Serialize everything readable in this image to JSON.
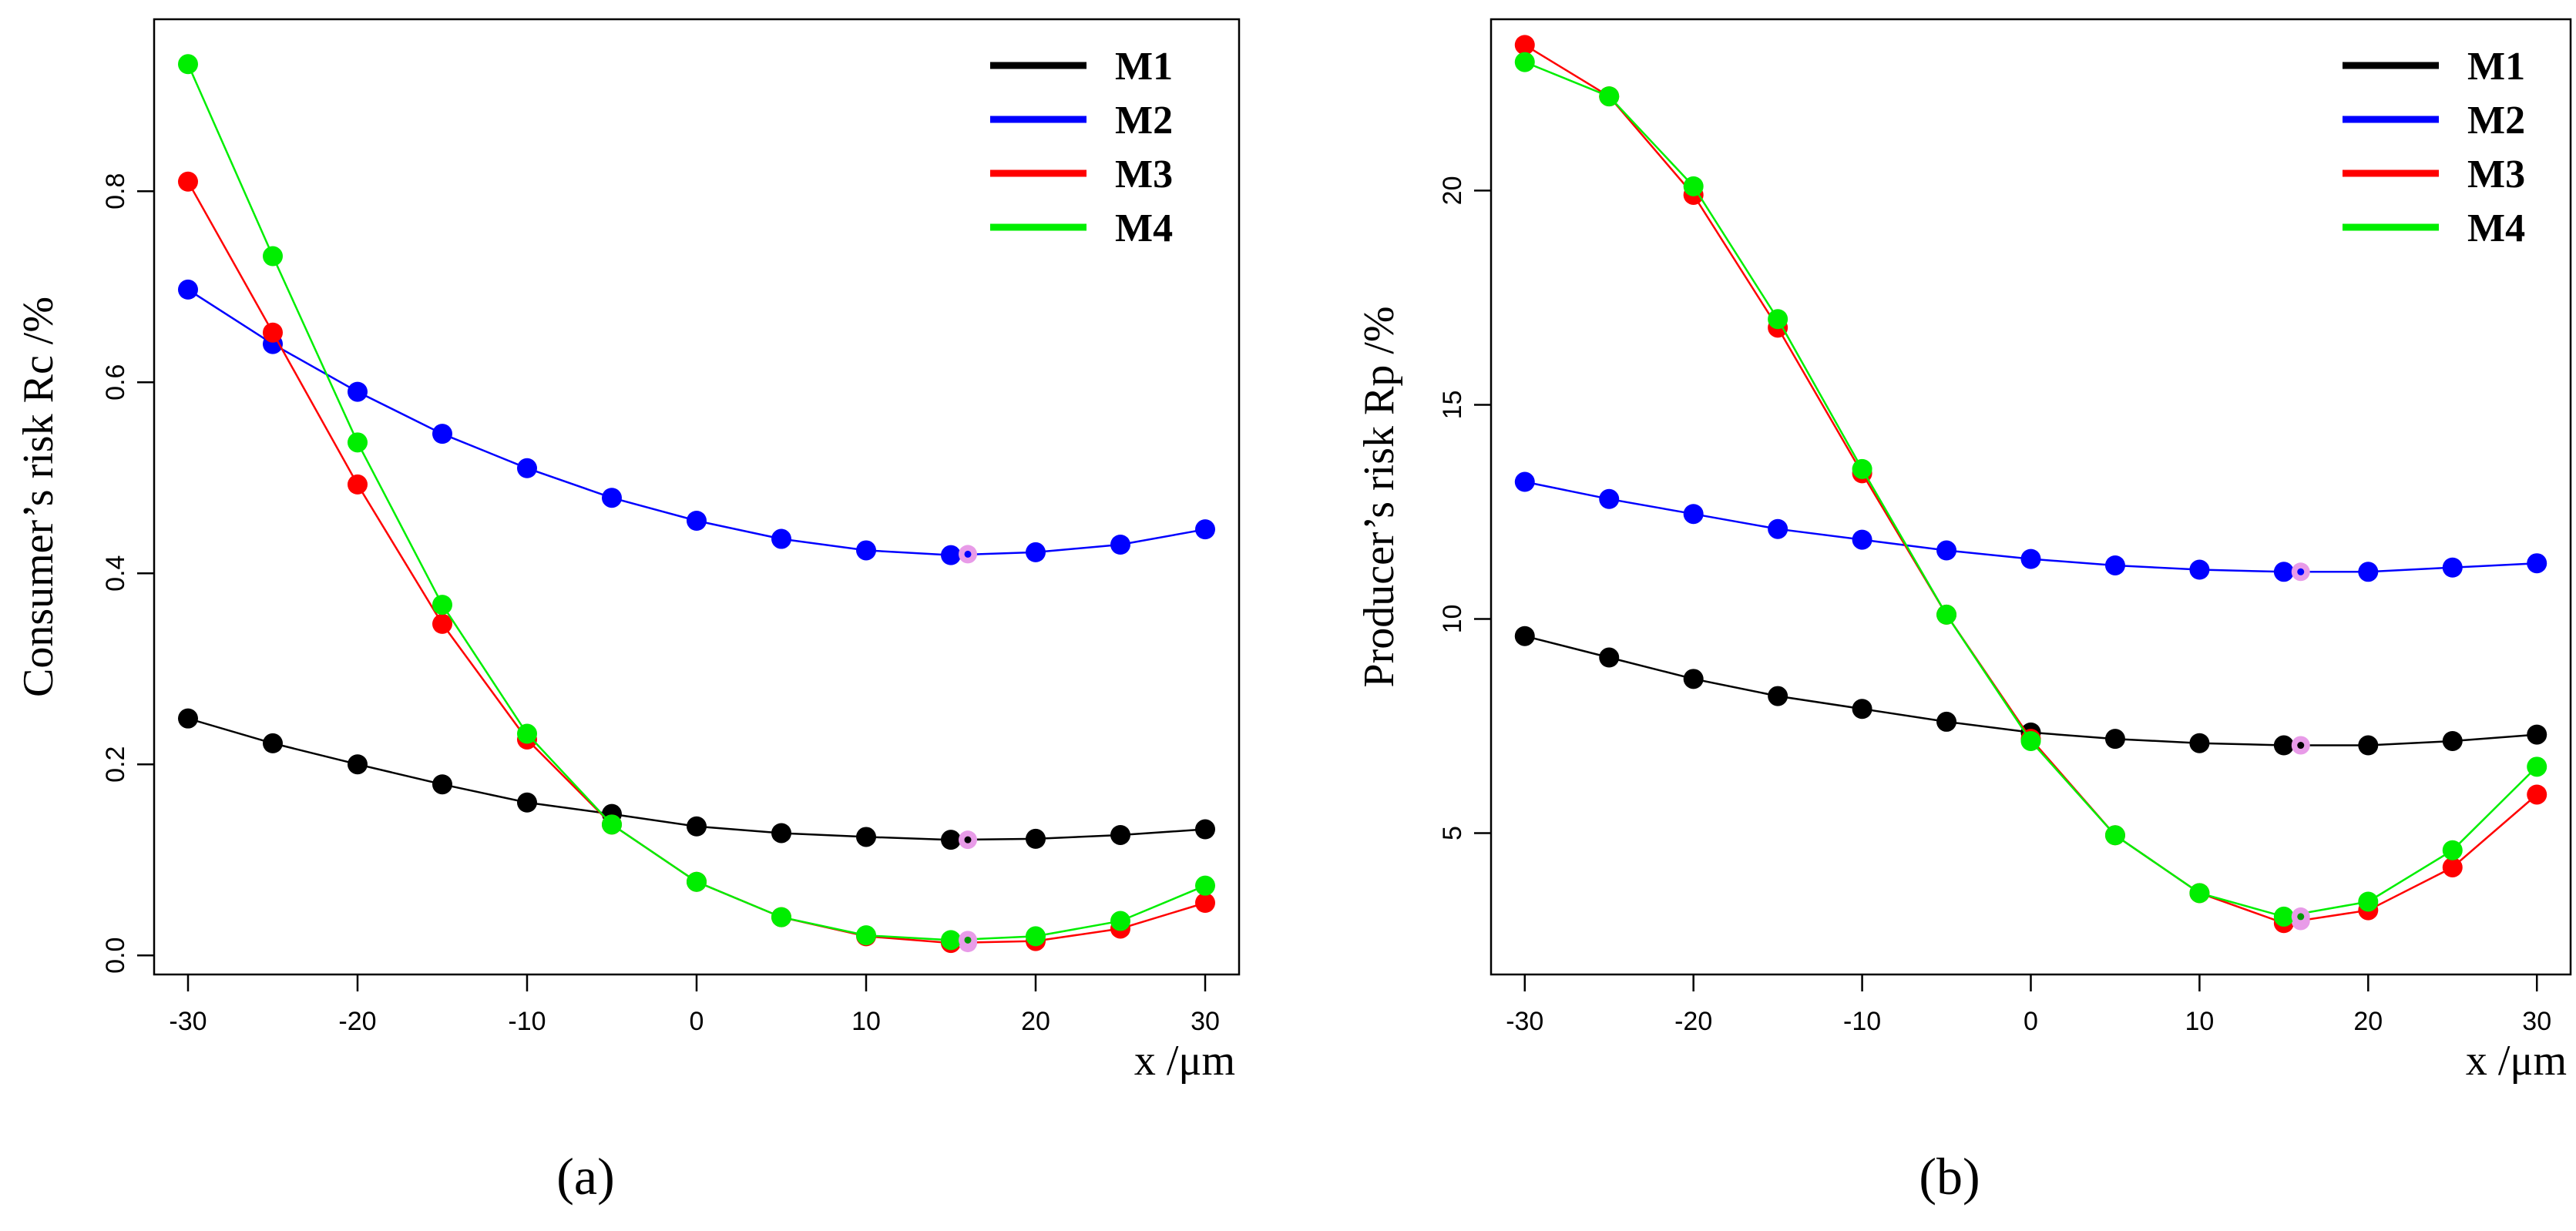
{
  "chart_data": [
    {
      "type": "line",
      "panel_label": "(a)",
      "xlabel": "x /μm",
      "ylabel": "Consumer’s risk Rc /%",
      "xlim": [
        -32,
        32
      ],
      "ylim": [
        -0.02,
        0.98
      ],
      "x_ticks": [
        -30,
        -20,
        -10,
        0,
        10,
        20,
        30
      ],
      "y_ticks": [
        0.0,
        0.2,
        0.4,
        0.6,
        0.8
      ],
      "y_tick_labels": [
        "0.0",
        "0.2",
        "0.4",
        "0.6",
        "0.8"
      ],
      "x": [
        -30,
        -25,
        -20,
        -15,
        -10,
        -5,
        0,
        5,
        10,
        15,
        20,
        25,
        30
      ],
      "legend_position": "top-right",
      "grid": false,
      "series": [
        {
          "name": "M1",
          "color": "#000000",
          "values": [
            0.248,
            0.222,
            0.2,
            0.179,
            0.16,
            0.148,
            0.135,
            0.128,
            0.124,
            0.121,
            0.122,
            0.126,
            0.132
          ],
          "optimum": {
            "x": 16,
            "y": 0.121
          }
        },
        {
          "name": "M2",
          "color": "#0000ff",
          "values": [
            0.697,
            0.64,
            0.59,
            0.546,
            0.51,
            0.479,
            0.455,
            0.436,
            0.424,
            0.419,
            0.422,
            0.43,
            0.446
          ],
          "optimum": {
            "x": 16,
            "y": 0.42
          }
        },
        {
          "name": "M3",
          "color": "#ff0000",
          "values": [
            0.81,
            0.652,
            0.493,
            0.347,
            0.226,
            0.137,
            0.077,
            0.04,
            0.02,
            0.013,
            0.015,
            0.028,
            0.055
          ],
          "optimum": {
            "x": 16,
            "y": 0.013
          }
        },
        {
          "name": "M4",
          "color": "#00ee00",
          "values": [
            0.933,
            0.732,
            0.537,
            0.367,
            0.232,
            0.137,
            0.077,
            0.04,
            0.021,
            0.016,
            0.02,
            0.036,
            0.073
          ],
          "optimum": {
            "x": 16,
            "y": 0.016
          }
        }
      ]
    },
    {
      "type": "line",
      "panel_label": "(b)",
      "xlabel": "x /μm",
      "ylabel": "Producer’s risk Rp /%",
      "xlim": [
        -32,
        32
      ],
      "ylim": [
        1.7,
        24.0
      ],
      "x_ticks": [
        -30,
        -20,
        -10,
        0,
        10,
        20,
        30
      ],
      "y_ticks": [
        5,
        10,
        15,
        20
      ],
      "y_tick_labels": [
        "5",
        "10",
        "15",
        "20"
      ],
      "x": [
        -30,
        -25,
        -20,
        -15,
        -10,
        -5,
        0,
        5,
        10,
        15,
        20,
        25,
        30
      ],
      "legend_position": "top-right",
      "grid": false,
      "series": [
        {
          "name": "M1",
          "color": "#000000",
          "values": [
            9.6,
            9.1,
            8.6,
            8.2,
            7.9,
            7.6,
            7.35,
            7.2,
            7.1,
            7.05,
            7.05,
            7.15,
            7.3
          ],
          "optimum": {
            "x": 16,
            "y": 7.05
          }
        },
        {
          "name": "M2",
          "color": "#0000ff",
          "values": [
            13.2,
            12.8,
            12.45,
            12.1,
            11.85,
            11.6,
            11.4,
            11.25,
            11.15,
            11.1,
            11.1,
            11.2,
            11.3
          ],
          "optimum": {
            "x": 16,
            "y": 11.1
          }
        },
        {
          "name": "M3",
          "color": "#ff0000",
          "values": [
            23.4,
            22.2,
            19.9,
            16.8,
            13.4,
            10.1,
            7.2,
            4.95,
            3.6,
            2.9,
            3.2,
            4.2,
            5.9
          ],
          "optimum": {
            "x": 16,
            "y": 2.95
          }
        },
        {
          "name": "M4",
          "color": "#00ee00",
          "values": [
            23.0,
            22.2,
            20.1,
            17.0,
            13.5,
            10.1,
            7.15,
            4.95,
            3.6,
            3.05,
            3.4,
            4.6,
            6.55
          ],
          "optimum": {
            "x": 16,
            "y": 3.05
          }
        }
      ]
    }
  ]
}
